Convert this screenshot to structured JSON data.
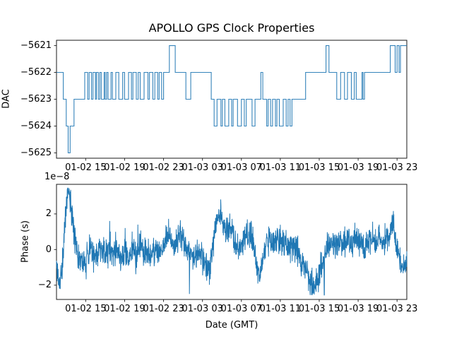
{
  "figure": {
    "title": "APOLLO GPS Clock Properties",
    "background": "#ffffff",
    "text_color": "#000000",
    "line_color": "#1f77b4",
    "spine_color": "#1a1a1a"
  },
  "chart_data": [
    {
      "type": "line",
      "subtype": "step",
      "title": "APOLLO GPS Clock Properties",
      "ylabel": "DAC",
      "ylim": [
        -5625.2,
        -5620.8
      ],
      "yticks": [
        {
          "value": -5621,
          "label": "−5621"
        },
        {
          "value": -5622,
          "label": "−5622"
        },
        {
          "value": -5623,
          "label": "−5623"
        },
        {
          "value": -5624,
          "label": "−5624"
        },
        {
          "value": -5625,
          "label": "−5625"
        }
      ],
      "xlim_hours": [
        0,
        36
      ],
      "x_epoch": "hours after 01-02 12:00 GMT",
      "xticks": [
        {
          "hour": 3,
          "label": "01-02 15"
        },
        {
          "hour": 7,
          "label": "01-02 19"
        },
        {
          "hour": 11,
          "label": "01-02 23"
        },
        {
          "hour": 15,
          "label": "01-03 03"
        },
        {
          "hour": 19,
          "label": "01-03 07"
        },
        {
          "hour": 23,
          "label": "01-03 11"
        },
        {
          "hour": 27,
          "label": "01-03 15"
        },
        {
          "hour": 31,
          "label": "01-03 19"
        },
        {
          "hour": 35,
          "label": "01-03 23"
        }
      ],
      "grid": false,
      "legend": false,
      "steps": [
        [
          0,
          -5622
        ],
        [
          0.7,
          -5623
        ],
        [
          1.0,
          -5624
        ],
        [
          1.2,
          -5625
        ],
        [
          1.4,
          -5624
        ],
        [
          1.8,
          -5623
        ],
        [
          2.9,
          -5622
        ],
        [
          3.2,
          -5623
        ],
        [
          3.35,
          -5622
        ],
        [
          3.6,
          -5623
        ],
        [
          3.75,
          -5622
        ],
        [
          4.0,
          -5623
        ],
        [
          4.1,
          -5622
        ],
        [
          4.3,
          -5623
        ],
        [
          4.45,
          -5622
        ],
        [
          4.6,
          -5623
        ],
        [
          4.9,
          -5622
        ],
        [
          5.0,
          -5623
        ],
        [
          5.15,
          -5622
        ],
        [
          5.3,
          -5623
        ],
        [
          5.6,
          -5622
        ],
        [
          5.75,
          -5623
        ],
        [
          6.1,
          -5622
        ],
        [
          6.4,
          -5623
        ],
        [
          6.8,
          -5622
        ],
        [
          7.0,
          -5623
        ],
        [
          7.4,
          -5622
        ],
        [
          7.7,
          -5623
        ],
        [
          7.85,
          -5622
        ],
        [
          8.2,
          -5623
        ],
        [
          8.4,
          -5622
        ],
        [
          8.6,
          -5623
        ],
        [
          9.0,
          -5622
        ],
        [
          9.4,
          -5623
        ],
        [
          9.55,
          -5622
        ],
        [
          9.9,
          -5623
        ],
        [
          10.1,
          -5622
        ],
        [
          10.4,
          -5623
        ],
        [
          10.55,
          -5622
        ],
        [
          10.8,
          -5623
        ],
        [
          11.0,
          -5622
        ],
        [
          11.6,
          -5621
        ],
        [
          12.2,
          -5622
        ],
        [
          13.3,
          -5623
        ],
        [
          13.8,
          -5622
        ],
        [
          15.9,
          -5623
        ],
        [
          16.2,
          -5624
        ],
        [
          16.5,
          -5623
        ],
        [
          16.9,
          -5624
        ],
        [
          17.05,
          -5623
        ],
        [
          17.3,
          -5624
        ],
        [
          17.7,
          -5623
        ],
        [
          18.0,
          -5624
        ],
        [
          18.15,
          -5623
        ],
        [
          18.6,
          -5624
        ],
        [
          19.0,
          -5623
        ],
        [
          19.3,
          -5624
        ],
        [
          19.5,
          -5623
        ],
        [
          20.1,
          -5624
        ],
        [
          20.4,
          -5623
        ],
        [
          21.0,
          -5622
        ],
        [
          21.2,
          -5623
        ],
        [
          21.6,
          -5624
        ],
        [
          21.75,
          -5623
        ],
        [
          22.0,
          -5624
        ],
        [
          22.2,
          -5623
        ],
        [
          22.5,
          -5624
        ],
        [
          22.65,
          -5623
        ],
        [
          22.9,
          -5624
        ],
        [
          23.3,
          -5623
        ],
        [
          23.6,
          -5624
        ],
        [
          23.8,
          -5623
        ],
        [
          24.0,
          -5624
        ],
        [
          24.2,
          -5623
        ],
        [
          25.6,
          -5622
        ],
        [
          27.7,
          -5621
        ],
        [
          28.0,
          -5622
        ],
        [
          28.8,
          -5623
        ],
        [
          29.2,
          -5622
        ],
        [
          29.6,
          -5623
        ],
        [
          29.9,
          -5622
        ],
        [
          30.3,
          -5623
        ],
        [
          30.6,
          -5622
        ],
        [
          30.8,
          -5623
        ],
        [
          31.4,
          -5622
        ],
        [
          31.5,
          -5623
        ],
        [
          31.65,
          -5622
        ],
        [
          34.3,
          -5621
        ],
        [
          34.8,
          -5622
        ],
        [
          35.0,
          -5621
        ],
        [
          35.2,
          -5622
        ],
        [
          35.35,
          -5621
        ]
      ]
    },
    {
      "type": "line",
      "subtype": "noisy",
      "ylabel": "Phase (s)",
      "xlabel": "Date (GMT)",
      "offset_text": "1e−8",
      "unit_note": "y values in 1e-8 seconds",
      "ylim": [
        -2.8,
        3.66
      ],
      "yticks": [
        {
          "value": 2,
          "label": "2"
        },
        {
          "value": 0,
          "label": "0"
        },
        {
          "value": -2,
          "label": "−2"
        }
      ],
      "xlim_hours": [
        0,
        36
      ],
      "xticks": [
        {
          "hour": 3,
          "label": "01-02 15"
        },
        {
          "hour": 7,
          "label": "01-02 19"
        },
        {
          "hour": 11,
          "label": "01-02 23"
        },
        {
          "hour": 15,
          "label": "01-03 03"
        },
        {
          "hour": 19,
          "label": "01-03 07"
        },
        {
          "hour": 23,
          "label": "01-03 11"
        },
        {
          "hour": 27,
          "label": "01-03 15"
        },
        {
          "hour": 31,
          "label": "01-03 19"
        },
        {
          "hour": 35,
          "label": "01-03 23"
        }
      ],
      "grid": false,
      "legend": false,
      "trend": [
        [
          0,
          -0.8
        ],
        [
          0.15,
          -1.5
        ],
        [
          0.35,
          -2.0
        ],
        [
          0.55,
          -1.1
        ],
        [
          0.7,
          0.0
        ],
        [
          0.85,
          1.4
        ],
        [
          1.0,
          2.6
        ],
        [
          1.15,
          3.3
        ],
        [
          1.35,
          3.1
        ],
        [
          1.55,
          2.4
        ],
        [
          1.75,
          1.5
        ],
        [
          1.95,
          0.5
        ],
        [
          2.15,
          -0.2
        ],
        [
          2.5,
          -0.4
        ],
        [
          2.8,
          -0.7
        ],
        [
          3.0,
          -1.0
        ],
        [
          3.2,
          -0.3
        ],
        [
          3.5,
          0.2
        ],
        [
          3.8,
          -0.5
        ],
        [
          4.2,
          -0.2
        ],
        [
          4.6,
          0.1
        ],
        [
          5.0,
          -0.5
        ],
        [
          5.4,
          0.2
        ],
        [
          5.8,
          -0.4
        ],
        [
          6.2,
          0.0
        ],
        [
          6.6,
          -0.5
        ],
        [
          7.0,
          -0.1
        ],
        [
          7.4,
          -0.5
        ],
        [
          7.8,
          0.1
        ],
        [
          8.2,
          -0.4
        ],
        [
          8.6,
          0.3
        ],
        [
          9.0,
          -0.3
        ],
        [
          9.4,
          -0.1
        ],
        [
          9.8,
          -0.5
        ],
        [
          10.2,
          0.0
        ],
        [
          10.6,
          -0.3
        ],
        [
          11.0,
          0.2
        ],
        [
          11.4,
          0.7
        ],
        [
          11.7,
          1.0
        ],
        [
          12.0,
          0.1
        ],
        [
          12.4,
          0.6
        ],
        [
          12.8,
          0.8
        ],
        [
          13.2,
          0.2
        ],
        [
          13.6,
          -0.1
        ],
        [
          14.0,
          -0.3
        ],
        [
          14.5,
          -0.4
        ],
        [
          15.0,
          -0.3
        ],
        [
          15.4,
          -0.8
        ],
        [
          15.7,
          -1.3
        ],
        [
          16.0,
          -0.2
        ],
        [
          16.4,
          1.5
        ],
        [
          16.8,
          1.9
        ],
        [
          17.2,
          1.5
        ],
        [
          17.6,
          1.1
        ],
        [
          18.0,
          1.0
        ],
        [
          18.4,
          0.6
        ],
        [
          18.8,
          -0.1
        ],
        [
          19.2,
          0.4
        ],
        [
          19.6,
          1.0
        ],
        [
          20.0,
          0.6
        ],
        [
          20.4,
          -0.3
        ],
        [
          20.8,
          -1.5
        ],
        [
          21.1,
          -0.9
        ],
        [
          21.5,
          0.2
        ],
        [
          21.9,
          0.6
        ],
        [
          22.3,
          0.4
        ],
        [
          22.7,
          0.6
        ],
        [
          23.1,
          0.3
        ],
        [
          23.5,
          0.4
        ],
        [
          24.0,
          0.1
        ],
        [
          24.4,
          0.3
        ],
        [
          24.8,
          -0.2
        ],
        [
          25.2,
          -0.6
        ],
        [
          25.6,
          -1.1
        ],
        [
          26.0,
          -1.7
        ],
        [
          26.4,
          -2.0
        ],
        [
          26.8,
          -1.6
        ],
        [
          27.2,
          -1.0
        ],
        [
          27.6,
          -0.3
        ],
        [
          28.0,
          0.2
        ],
        [
          28.4,
          0.5
        ],
        [
          28.8,
          0.2
        ],
        [
          29.2,
          0.5
        ],
        [
          29.6,
          0.3
        ],
        [
          30.0,
          0.6
        ],
        [
          30.4,
          0.3
        ],
        [
          30.8,
          0.7
        ],
        [
          31.2,
          0.4
        ],
        [
          31.6,
          0.2
        ],
        [
          32.0,
          0.5
        ],
        [
          32.4,
          0.7
        ],
        [
          32.8,
          0.3
        ],
        [
          33.2,
          0.6
        ],
        [
          33.6,
          0.3
        ],
        [
          34.0,
          0.5
        ],
        [
          34.4,
          1.2
        ],
        [
          34.6,
          1.6
        ],
        [
          34.8,
          0.5
        ],
        [
          35.1,
          -0.2
        ],
        [
          35.4,
          -1.0
        ],
        [
          35.7,
          -0.9
        ],
        [
          36,
          -0.6
        ]
      ],
      "noise_sd": 0.4,
      "noise_seed": 11,
      "samples": 1700
    }
  ]
}
